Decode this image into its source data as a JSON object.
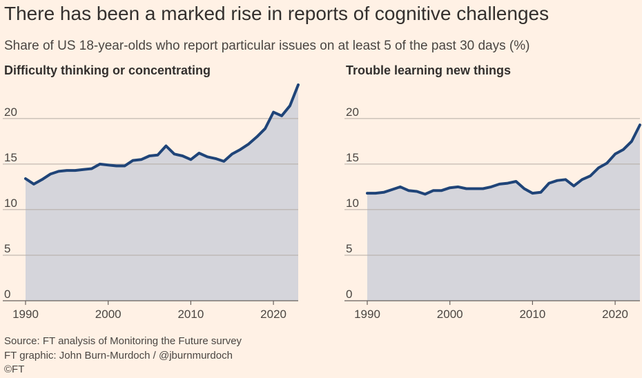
{
  "title": "There has been a marked rise in reports of cognitive challenges",
  "subtitle": "Share of US 18-year-olds who report particular issues on at least 5 of the past 30 days (%)",
  "chart_data": [
    {
      "type": "area",
      "title": "Difficulty thinking or concentrating",
      "xlabel": "",
      "ylabel": "",
      "xlim": [
        1990,
        2023
      ],
      "ylim": [
        0,
        24
      ],
      "x_ticks": [
        1990,
        2000,
        2010,
        2020
      ],
      "y_ticks": [
        0,
        5,
        10,
        15,
        20
      ],
      "grid": "horizontal",
      "line_color": "#1f4478",
      "fill_color": "#d5d5db",
      "x": [
        1990,
        1991,
        1992,
        1993,
        1994,
        1995,
        1996,
        1997,
        1998,
        1999,
        2000,
        2001,
        2002,
        2003,
        2004,
        2005,
        2006,
        2007,
        2008,
        2009,
        2010,
        2011,
        2012,
        2013,
        2014,
        2015,
        2016,
        2017,
        2018,
        2019,
        2020,
        2021,
        2022,
        2023
      ],
      "y": [
        13.4,
        12.8,
        13.3,
        13.9,
        14.2,
        14.3,
        14.3,
        14.4,
        14.5,
        15.0,
        14.9,
        14.8,
        14.8,
        15.4,
        15.5,
        15.9,
        16.0,
        17.0,
        16.1,
        15.9,
        15.5,
        16.2,
        15.8,
        15.6,
        15.3,
        16.1,
        16.6,
        17.2,
        18.0,
        18.9,
        20.7,
        20.3,
        21.4,
        23.7
      ]
    },
    {
      "type": "area",
      "title": "Trouble learning new things",
      "xlabel": "",
      "ylabel": "",
      "xlim": [
        1990,
        2023
      ],
      "ylim": [
        0,
        24
      ],
      "x_ticks": [
        1990,
        2000,
        2010,
        2020
      ],
      "y_ticks": [
        0,
        5,
        10,
        15,
        20
      ],
      "grid": "horizontal",
      "line_color": "#1f4478",
      "fill_color": "#d5d5db",
      "x": [
        1990,
        1991,
        1992,
        1993,
        1994,
        1995,
        1996,
        1997,
        1998,
        1999,
        2000,
        2001,
        2002,
        2003,
        2004,
        2005,
        2006,
        2007,
        2008,
        2009,
        2010,
        2011,
        2012,
        2013,
        2014,
        2015,
        2016,
        2017,
        2018,
        2019,
        2020,
        2021,
        2022,
        2023
      ],
      "y": [
        11.8,
        11.8,
        11.9,
        12.2,
        12.5,
        12.1,
        12.0,
        11.7,
        12.1,
        12.1,
        12.4,
        12.5,
        12.3,
        12.3,
        12.3,
        12.5,
        12.8,
        12.9,
        13.1,
        12.3,
        11.8,
        11.9,
        12.9,
        13.2,
        13.3,
        12.6,
        13.3,
        13.7,
        14.6,
        15.1,
        16.1,
        16.6,
        17.5,
        19.3
      ]
    }
  ],
  "footer": {
    "source": "Source: FT analysis of Monitoring the Future survey",
    "credit": "FT graphic: John Burn-Murdoch / @jburnmurdoch",
    "copyright": "©FT"
  }
}
